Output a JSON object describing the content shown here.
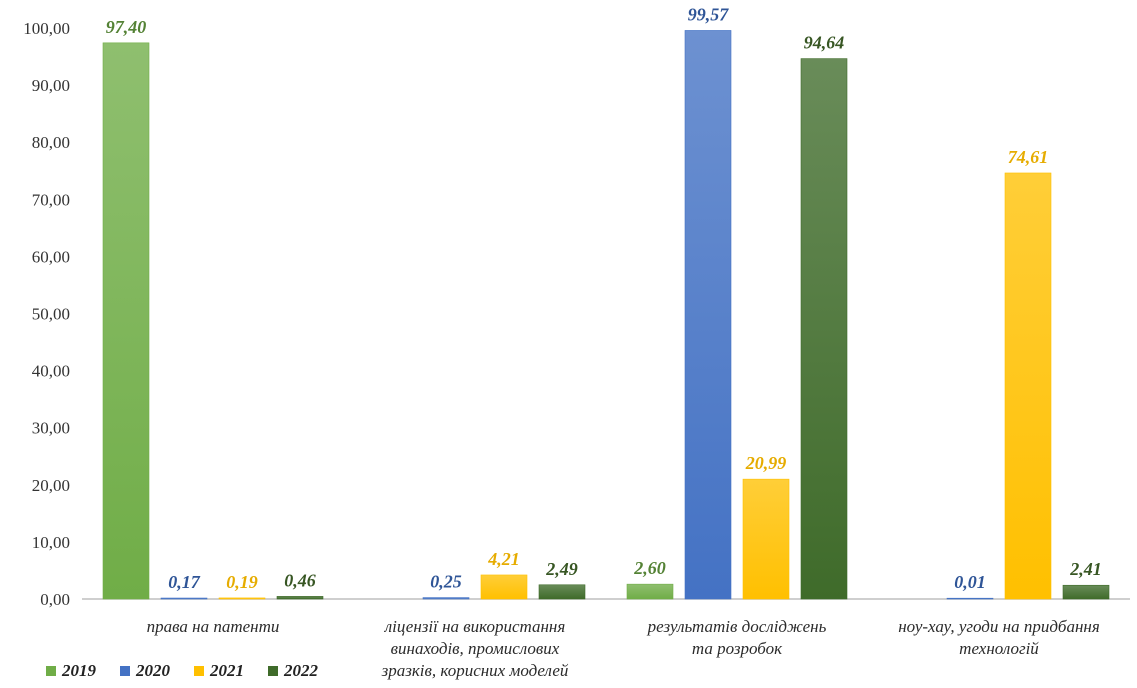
{
  "chart_data": {
    "type": "bar",
    "categories": [
      [
        "права на патенти"
      ],
      [
        "ліцензії на використання",
        "винаходів, промислових",
        "зразків, корисних моделей"
      ],
      [
        "результатів досліджень",
        "та розробок"
      ],
      [
        "ноу-хау, угоди на придбання",
        "технологій"
      ]
    ],
    "series": [
      {
        "name": "2019",
        "color": "#70ad47",
        "label_color": "#548235",
        "values": [
          97.4,
          null,
          2.6,
          null
        ],
        "labels": [
          "97,40",
          "",
          "2,60",
          ""
        ]
      },
      {
        "name": "2020",
        "color": "#4472c4",
        "label_color": "#2f5597",
        "values": [
          0.17,
          0.25,
          99.57,
          0.01
        ],
        "labels": [
          "0,17",
          "0,25",
          "99,57",
          "0,01"
        ]
      },
      {
        "name": "2021",
        "color": "#ffc000",
        "label_color": "#e6ac00",
        "values": [
          0.19,
          4.21,
          20.99,
          74.61
        ],
        "labels": [
          "0,19",
          "4,21",
          "20,99",
          "74,61"
        ]
      },
      {
        "name": "2022",
        "color": "#3f6b2a",
        "label_color": "#375623",
        "values": [
          0.46,
          2.49,
          94.64,
          2.41
        ],
        "labels": [
          "0,46",
          "2,49",
          "94,64",
          "2,41"
        ]
      }
    ],
    "ylim": [
      0,
      100
    ],
    "yticks": [
      "0,00",
      "10,00",
      "20,00",
      "30,00",
      "40,00",
      "50,00",
      "60,00",
      "70,00",
      "80,00",
      "90,00",
      "100,00"
    ],
    "grid": false,
    "legend": "bottom-left"
  }
}
